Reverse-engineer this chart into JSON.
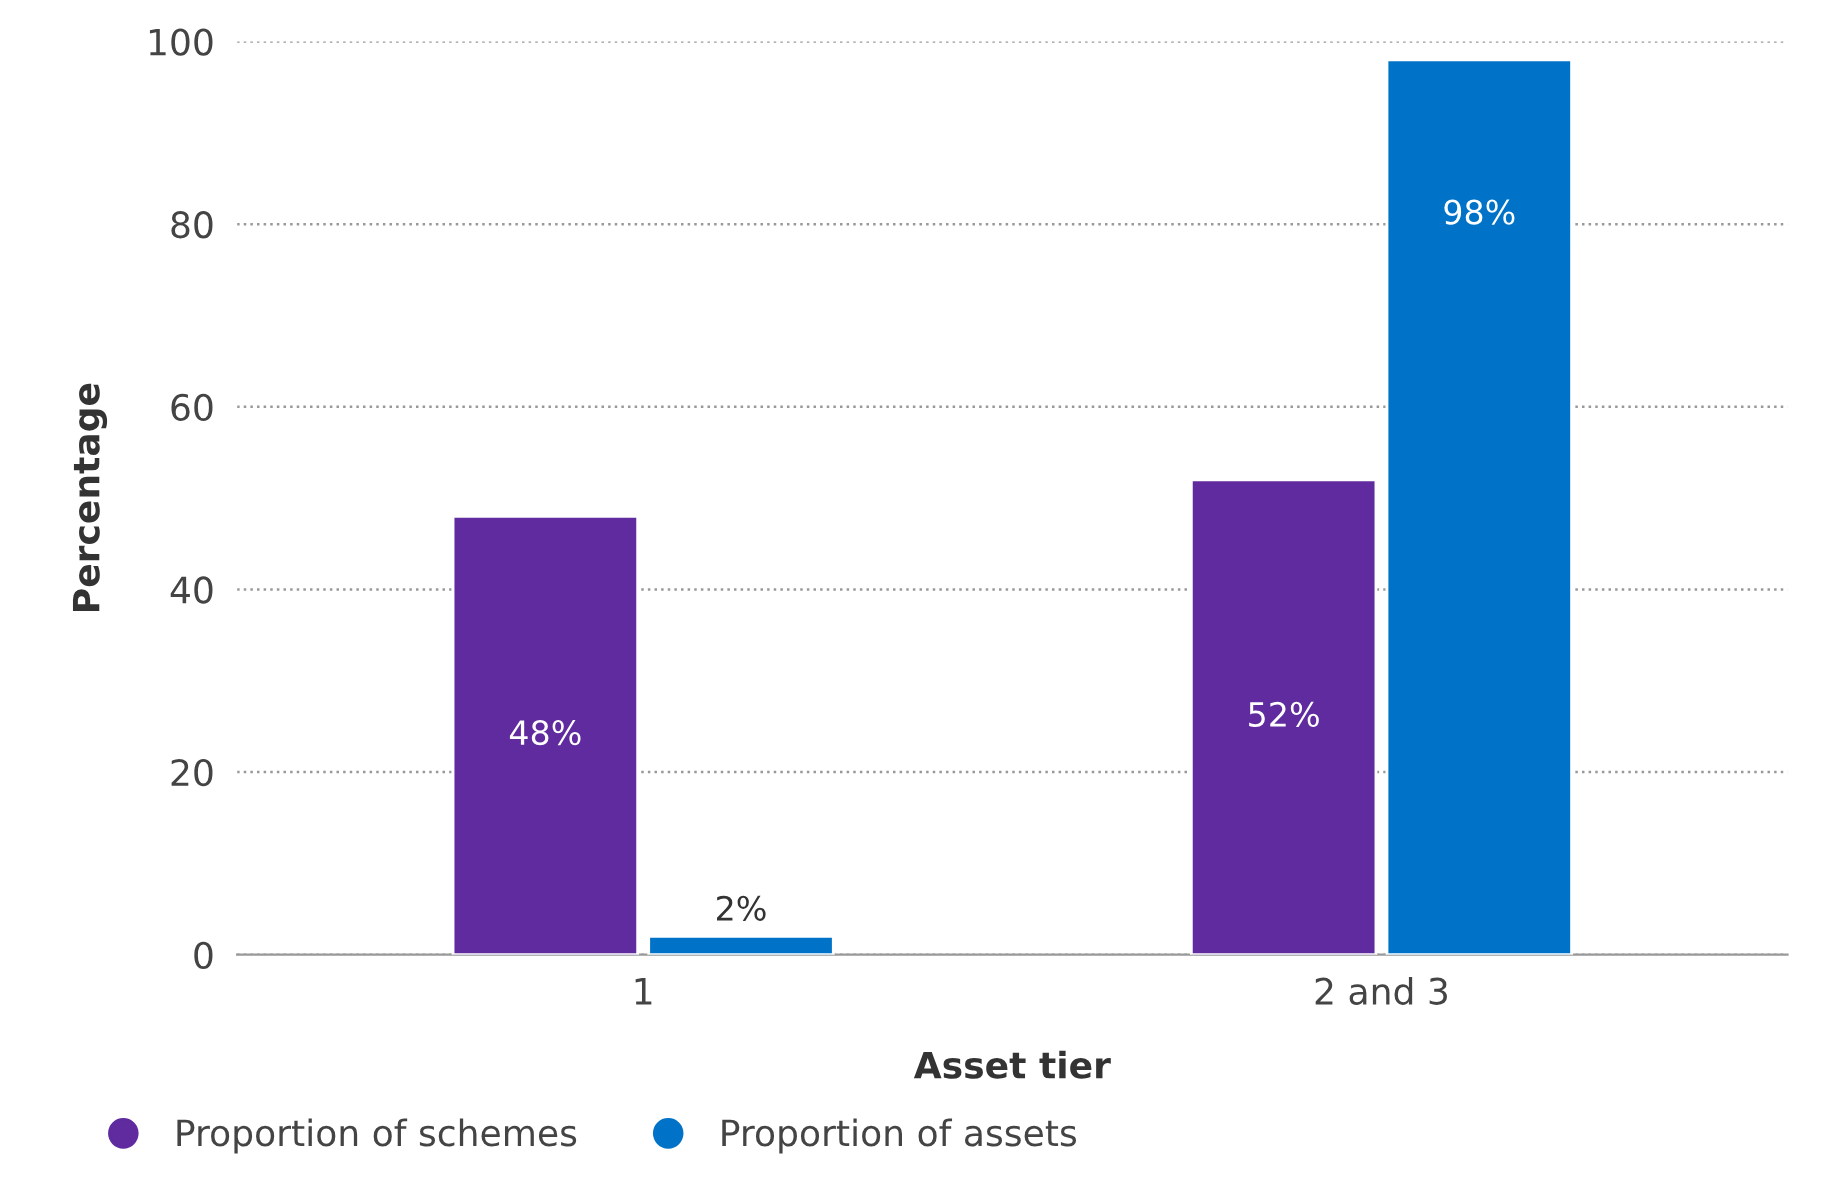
{
  "chart_data": {
    "type": "bar",
    "xlabel": "Asset tier",
    "ylabel": "Percentage",
    "categories": [
      "1",
      "2 and 3"
    ],
    "series": [
      {
        "name": "Proportion of schemes",
        "color": "#5f2b9f",
        "values": [
          48,
          52
        ],
        "value_labels": [
          "48%",
          "52%"
        ]
      },
      {
        "name": "Proportion of assets",
        "color": "#0073c8",
        "values": [
          2,
          98
        ],
        "value_labels": [
          "2%",
          "98%"
        ]
      }
    ],
    "ylim": [
      0,
      100
    ],
    "yticks": [
      0,
      20,
      40,
      60,
      80,
      100
    ],
    "grid": "y",
    "legend": "bottom left"
  }
}
